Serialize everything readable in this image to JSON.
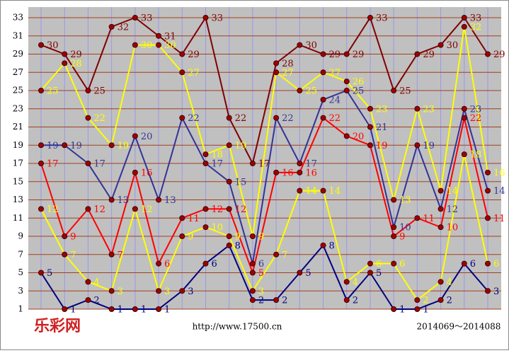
{
  "chart_data": {
    "type": "line",
    "ylim": [
      1,
      33
    ],
    "yticks": [
      1,
      3,
      5,
      7,
      9,
      11,
      13,
      15,
      17,
      19,
      21,
      23,
      25,
      27,
      29,
      31,
      33
    ],
    "grid": true,
    "series": [
      {
        "color": "#800000",
        "values": [
          30,
          29,
          25,
          32,
          33,
          31,
          29,
          33,
          22,
          17,
          28,
          30,
          29,
          29,
          33,
          25,
          29,
          30,
          33,
          29
        ]
      },
      {
        "color": "#333399",
        "values": [
          19,
          19,
          17,
          13,
          20,
          13,
          22,
          17,
          15,
          6,
          22,
          17,
          24,
          25,
          21,
          10,
          19,
          12,
          23,
          14
        ]
      },
      {
        "color": "#ff0000",
        "values": [
          17,
          9,
          12,
          7,
          16,
          6,
          11,
          12,
          12,
          5,
          16,
          16,
          22,
          20,
          19,
          9,
          11,
          10,
          22,
          11
        ]
      },
      {
        "color": "#ffff00",
        "values": [
          25,
          28,
          22,
          19,
          30,
          30,
          27,
          18,
          19,
          9,
          27,
          25,
          27,
          26,
          23,
          13,
          23,
          14,
          32,
          16
        ]
      },
      {
        "color": "#ffff00",
        "values": [
          12,
          7,
          4,
          3,
          12,
          3,
          9,
          10,
          9,
          3,
          7,
          14,
          14,
          4,
          6,
          6,
          2,
          4,
          18,
          6
        ]
      },
      {
        "color": "#000080",
        "values": [
          5,
          1,
          2,
          1,
          1,
          1,
          3,
          6,
          8,
          2,
          2,
          5,
          8,
          2,
          5,
          1,
          1,
          2,
          6,
          3
        ]
      }
    ],
    "logo": "乐彩网",
    "url": "http://www.17500.cn",
    "period_range": "2014069～2014088"
  }
}
